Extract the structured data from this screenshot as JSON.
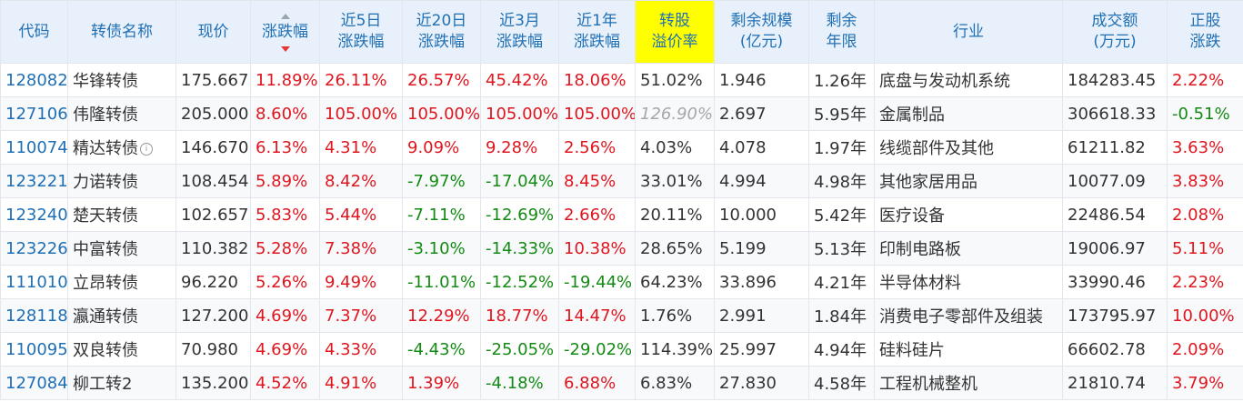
{
  "headers": [
    {
      "key": "code",
      "lines": [
        "代码"
      ]
    },
    {
      "key": "name",
      "lines": [
        "转债名称"
      ]
    },
    {
      "key": "price",
      "lines": [
        "现价"
      ]
    },
    {
      "key": "chg",
      "lines": [
        "涨跌幅"
      ]
    },
    {
      "key": "chg5d",
      "lines": [
        "近5日",
        "涨跌幅"
      ]
    },
    {
      "key": "chg20d",
      "lines": [
        "近20日",
        "涨跌幅"
      ]
    },
    {
      "key": "chg3m",
      "lines": [
        "近3月",
        "涨跌幅"
      ]
    },
    {
      "key": "chg1y",
      "lines": [
        "近1年",
        "涨跌幅"
      ]
    },
    {
      "key": "premium",
      "lines": [
        "转股",
        "溢价率"
      ]
    },
    {
      "key": "remain_size",
      "lines": [
        "剩余规模",
        "(亿元)"
      ]
    },
    {
      "key": "remain_years",
      "lines": [
        "剩余",
        "年限"
      ]
    },
    {
      "key": "industry",
      "lines": [
        "行业"
      ]
    },
    {
      "key": "volume",
      "lines": [
        "成交额",
        "(万元)"
      ]
    },
    {
      "key": "stock_chg",
      "lines": [
        "正股",
        "涨跌"
      ]
    }
  ],
  "sort_column": "chg",
  "highlight_column": "premium",
  "rows": [
    {
      "code": "128082",
      "name": "华锋转债",
      "price": "175.667",
      "chg": "11.89%",
      "chg5d": "26.11%",
      "chg20d": "26.57%",
      "chg3m": "45.42%",
      "chg1y": "18.06%",
      "premium": "51.02%",
      "remain_size": "1.946",
      "remain_years": "1.26年",
      "industry": "底盘与发动机系统",
      "volume": "184283.45",
      "stock_chg": "2.22%"
    },
    {
      "code": "127106",
      "name": "伟隆转债",
      "price": "205.000",
      "chg": "8.60%",
      "chg5d": "105.00%",
      "chg20d": "105.00%",
      "chg3m": "105.00%",
      "chg1y": "105.00%",
      "premium": "126.90%",
      "remain_size": "2.697",
      "remain_years": "5.95年",
      "industry": "金属制品",
      "volume": "306618.33",
      "stock_chg": "-0.51%"
    },
    {
      "code": "110074",
      "name": "精达转债",
      "name_icon": "info-icon",
      "price": "146.670",
      "chg": "6.13%",
      "chg5d": "4.31%",
      "chg20d": "9.09%",
      "chg3m": "9.28%",
      "chg1y": "2.56%",
      "premium": "4.03%",
      "remain_size": "4.078",
      "remain_years": "1.97年",
      "industry": "线缆部件及其他",
      "volume": "61211.82",
      "stock_chg": "3.63%"
    },
    {
      "code": "123221",
      "name": "力诺转债",
      "price": "108.454",
      "chg": "5.89%",
      "chg5d": "8.42%",
      "chg20d": "-7.97%",
      "chg3m": "-17.04%",
      "chg1y": "8.45%",
      "premium": "33.01%",
      "remain_size": "4.994",
      "remain_years": "4.98年",
      "industry": "其他家居用品",
      "volume": "10077.09",
      "stock_chg": "3.83%"
    },
    {
      "code": "123240",
      "name": "楚天转债",
      "price": "102.657",
      "chg": "5.83%",
      "chg5d": "5.44%",
      "chg20d": "-7.11%",
      "chg3m": "-12.69%",
      "chg1y": "2.66%",
      "premium": "20.11%",
      "remain_size": "10.000",
      "remain_years": "5.42年",
      "industry": "医疗设备",
      "volume": "22486.54",
      "stock_chg": "2.08%"
    },
    {
      "code": "123226",
      "name": "中富转债",
      "price": "110.382",
      "chg": "5.28%",
      "chg5d": "7.38%",
      "chg20d": "-3.10%",
      "chg3m": "-14.33%",
      "chg1y": "10.38%",
      "premium": "28.65%",
      "remain_size": "5.199",
      "remain_years": "5.13年",
      "industry": "印制电路板",
      "volume": "19006.97",
      "stock_chg": "5.11%"
    },
    {
      "code": "111010",
      "name": "立昂转债",
      "price": "96.220",
      "chg": "5.26%",
      "chg5d": "9.49%",
      "chg20d": "-11.01%",
      "chg3m": "-12.52%",
      "chg1y": "-19.44%",
      "premium": "64.23%",
      "remain_size": "33.896",
      "remain_years": "4.21年",
      "industry": "半导体材料",
      "volume": "33990.46",
      "stock_chg": "2.23%"
    },
    {
      "code": "128118",
      "name": "瀛通转债",
      "price": "127.200",
      "chg": "4.69%",
      "chg5d": "7.37%",
      "chg20d": "12.29%",
      "chg3m": "18.77%",
      "chg1y": "14.47%",
      "premium": "1.76%",
      "remain_size": "2.991",
      "remain_years": "1.84年",
      "industry": "消费电子零部件及组装",
      "volume": "173795.97",
      "stock_chg": "10.00%"
    },
    {
      "code": "110095",
      "name": "双良转债",
      "price": "70.980",
      "chg": "4.69%",
      "chg5d": "4.33%",
      "chg20d": "-4.43%",
      "chg3m": "-25.05%",
      "chg1y": "-29.02%",
      "premium": "114.39%",
      "remain_size": "25.997",
      "remain_years": "4.94年",
      "industry": "硅料硅片",
      "volume": "66602.78",
      "stock_chg": "2.09%"
    },
    {
      "code": "127084",
      "name": "柳工转2",
      "price": "135.200",
      "chg": "4.52%",
      "chg5d": "4.91%",
      "chg20d": "1.39%",
      "chg3m": "-4.18%",
      "chg1y": "6.88%",
      "premium": "6.83%",
      "remain_size": "27.830",
      "remain_years": "4.58年",
      "industry": "工程机械整机",
      "volume": "21810.74",
      "stock_chg": "3.79%"
    }
  ],
  "greyed_cells": [
    {
      "row": 1,
      "key": "premium"
    }
  ],
  "colors": {
    "up": "#e0161f",
    "down": "#138a13",
    "code": "#1f6fb5",
    "header_bg": "#e8f1fb",
    "highlight": "#ffff00"
  }
}
